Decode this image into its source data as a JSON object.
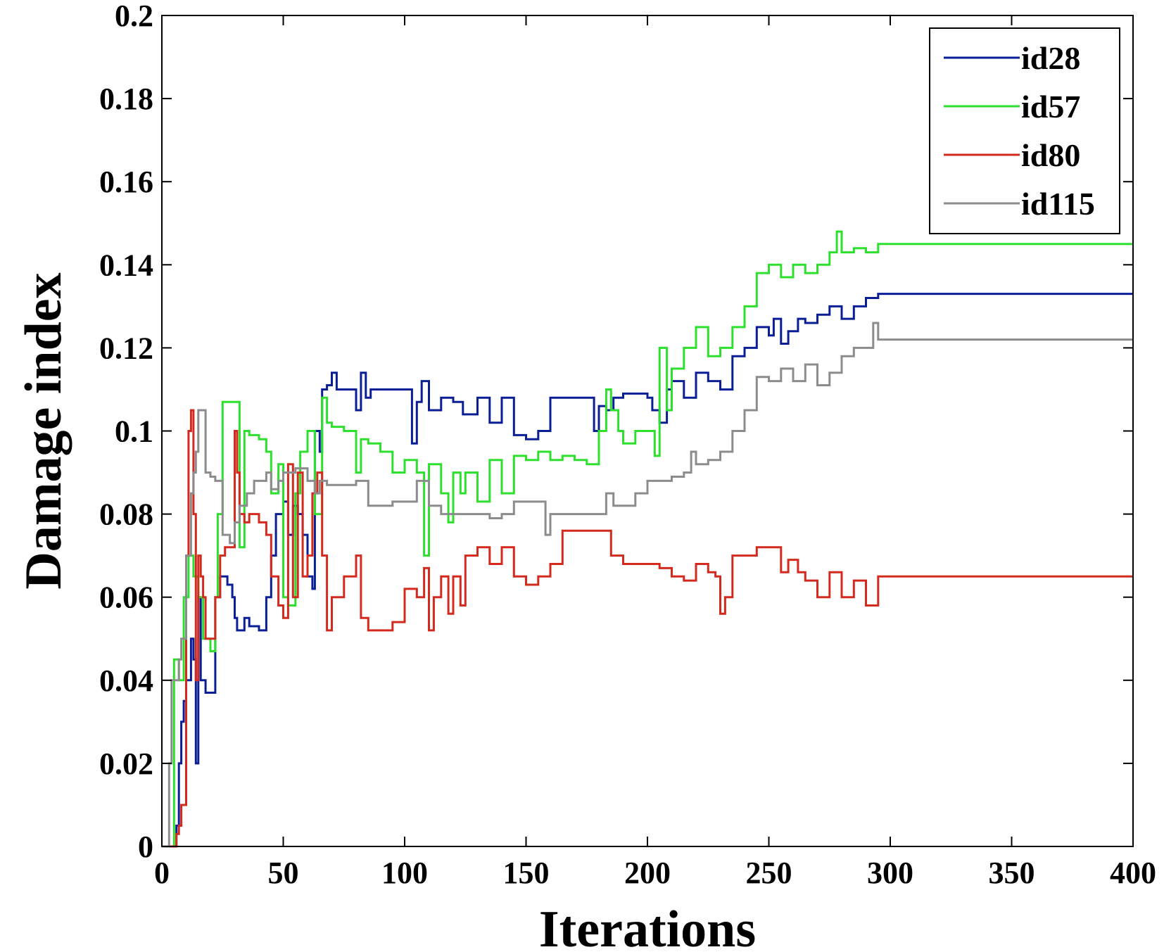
{
  "chart_data": {
    "type": "line",
    "title": "",
    "xlabel": "Iterations",
    "ylabel": "Damage index",
    "xlim": [
      0,
      400
    ],
    "ylim": [
      0,
      0.2
    ],
    "xticks": [
      0,
      50,
      100,
      150,
      200,
      250,
      300,
      350,
      400
    ],
    "yticks": [
      0,
      0.02,
      0.04,
      0.06,
      0.08,
      0.1,
      0.12,
      0.14,
      0.16,
      0.18,
      0.2
    ],
    "xtick_labels": [
      "0",
      "50",
      "100",
      "150",
      "200",
      "250",
      "300",
      "350",
      "400"
    ],
    "ytick_labels": [
      "0",
      "0.02",
      "0.04",
      "0.06",
      "0.08",
      "0.1",
      "0.12",
      "0.14",
      "0.16",
      "0.18",
      "0.2"
    ],
    "grid": false,
    "legend_position": "top-right",
    "series": [
      {
        "name": "id28",
        "color": "#0a1e96",
        "x": [
          0,
          3,
          5,
          6,
          7,
          8,
          9,
          10,
          12,
          13,
          14,
          15,
          16,
          18,
          20,
          22,
          24,
          27,
          29,
          30,
          31,
          32,
          34,
          36,
          40,
          43,
          45,
          47,
          50,
          52,
          54,
          56,
          58,
          60,
          62,
          63,
          65,
          66,
          68,
          70,
          72,
          75,
          80,
          82,
          84,
          86,
          90,
          100,
          103,
          105,
          107,
          110,
          115,
          120,
          124,
          130,
          135,
          140,
          145,
          150,
          155,
          160,
          170,
          178,
          180,
          183,
          186,
          190,
          200,
          202,
          205,
          208,
          210,
          215,
          220,
          225,
          230,
          235,
          240,
          245,
          250,
          252,
          255,
          258,
          262,
          265,
          270,
          275,
          280,
          285,
          290,
          295,
          300,
          320,
          350,
          400
        ],
        "values": [
          0,
          0,
          0,
          0.005,
          0.02,
          0.03,
          0.035,
          0.04,
          0.05,
          0.045,
          0.02,
          0.06,
          0.04,
          0.037,
          0.037,
          0.06,
          0.065,
          0.063,
          0.06,
          0.055,
          0.052,
          0.052,
          0.055,
          0.053,
          0.052,
          0.06,
          0.07,
          0.08,
          0.083,
          0.075,
          0.082,
          0.08,
          0.075,
          0.065,
          0.062,
          0.1,
          0.095,
          0.11,
          0.111,
          0.114,
          0.11,
          0.11,
          0.105,
          0.114,
          0.108,
          0.11,
          0.11,
          0.11,
          0.097,
          0.107,
          0.112,
          0.105,
          0.108,
          0.107,
          0.104,
          0.108,
          0.102,
          0.108,
          0.099,
          0.098,
          0.1,
          0.108,
          0.108,
          0.1,
          0.106,
          0.105,
          0.108,
          0.109,
          0.108,
          0.105,
          0.102,
          0.11,
          0.112,
          0.108,
          0.114,
          0.112,
          0.11,
          0.118,
          0.12,
          0.125,
          0.123,
          0.127,
          0.121,
          0.124,
          0.127,
          0.126,
          0.128,
          0.13,
          0.127,
          0.13,
          0.132,
          0.133,
          0.133,
          0.133,
          0.133,
          0.133
        ]
      },
      {
        "name": "id57",
        "color": "#2ee02e",
        "x": [
          0,
          3,
          5,
          7,
          9,
          11,
          13,
          15,
          17,
          20,
          22,
          23,
          25,
          27,
          30,
          32,
          34,
          36,
          40,
          43,
          45,
          48,
          50,
          52,
          55,
          57,
          60,
          63,
          66,
          68,
          70,
          75,
          80,
          82,
          85,
          90,
          95,
          100,
          105,
          108,
          110,
          115,
          118,
          120,
          123,
          125,
          130,
          135,
          140,
          145,
          150,
          155,
          160,
          165,
          170,
          175,
          180,
          183,
          185,
          188,
          190,
          195,
          200,
          203,
          205,
          208,
          210,
          215,
          220,
          225,
          230,
          235,
          240,
          245,
          250,
          255,
          260,
          265,
          270,
          275,
          278,
          280,
          285,
          290,
          295,
          300,
          320,
          350,
          400
        ],
        "values": [
          0,
          0,
          0.045,
          0.04,
          0.06,
          0.07,
          0.065,
          0.06,
          0.05,
          0.047,
          0.06,
          0.08,
          0.107,
          0.107,
          0.107,
          0.072,
          0.1,
          0.099,
          0.098,
          0.095,
          0.085,
          0.092,
          0.06,
          0.058,
          0.085,
          0.095,
          0.1,
          0.08,
          0.108,
          0.102,
          0.101,
          0.1,
          0.09,
          0.098,
          0.097,
          0.095,
          0.09,
          0.093,
          0.09,
          0.07,
          0.092,
          0.085,
          0.078,
          0.09,
          0.085,
          0.09,
          0.083,
          0.093,
          0.085,
          0.094,
          0.093,
          0.095,
          0.093,
          0.094,
          0.093,
          0.092,
          0.1,
          0.11,
          0.105,
          0.1,
          0.097,
          0.1,
          0.1,
          0.094,
          0.12,
          0.105,
          0.115,
          0.12,
          0.125,
          0.118,
          0.12,
          0.125,
          0.13,
          0.138,
          0.14,
          0.137,
          0.14,
          0.138,
          0.14,
          0.143,
          0.148,
          0.143,
          0.144,
          0.143,
          0.145,
          0.145,
          0.145,
          0.145,
          0.145
        ]
      },
      {
        "name": "id80",
        "color": "#d42a1e",
        "x": [
          0,
          3,
          5,
          6,
          7,
          8,
          10,
          11,
          12,
          13,
          14,
          15,
          16,
          17,
          18,
          20,
          22,
          24,
          26,
          28,
          30,
          31,
          32,
          34,
          36,
          40,
          43,
          45,
          48,
          50,
          52,
          54,
          56,
          58,
          60,
          62,
          64,
          66,
          68,
          70,
          75,
          80,
          82,
          85,
          90,
          95,
          100,
          105,
          108,
          110,
          112,
          115,
          118,
          120,
          123,
          125,
          130,
          135,
          140,
          145,
          150,
          155,
          160,
          165,
          170,
          175,
          180,
          185,
          190,
          200,
          205,
          210,
          215,
          220,
          225,
          228,
          230,
          232,
          235,
          240,
          245,
          250,
          255,
          258,
          262,
          265,
          270,
          275,
          280,
          285,
          290,
          295,
          300,
          320,
          350,
          400
        ],
        "values": [
          0,
          0,
          0,
          0.003,
          0.005,
          0.01,
          0.07,
          0.1,
          0.105,
          0.08,
          0.04,
          0.07,
          0.065,
          0.06,
          0.05,
          0.05,
          0.06,
          0.07,
          0.072,
          0.072,
          0.1,
          0.09,
          0.08,
          0.078,
          0.08,
          0.078,
          0.075,
          0.065,
          0.058,
          0.055,
          0.092,
          0.06,
          0.09,
          0.065,
          0.07,
          0.085,
          0.09,
          0.07,
          0.052,
          0.06,
          0.065,
          0.07,
          0.055,
          0.052,
          0.052,
          0.054,
          0.062,
          0.06,
          0.067,
          0.052,
          0.06,
          0.065,
          0.056,
          0.065,
          0.058,
          0.07,
          0.072,
          0.068,
          0.072,
          0.065,
          0.063,
          0.065,
          0.068,
          0.076,
          0.076,
          0.076,
          0.076,
          0.07,
          0.068,
          0.068,
          0.067,
          0.065,
          0.064,
          0.068,
          0.066,
          0.065,
          0.056,
          0.06,
          0.07,
          0.07,
          0.072,
          0.072,
          0.066,
          0.069,
          0.066,
          0.064,
          0.06,
          0.066,
          0.06,
          0.064,
          0.058,
          0.065,
          0.065,
          0.065,
          0.065,
          0.065
        ]
      },
      {
        "name": "id115",
        "color": "#8c8c8c",
        "x": [
          0,
          3,
          4,
          5,
          7,
          8,
          10,
          12,
          13,
          14,
          15,
          16,
          18,
          20,
          22,
          25,
          28,
          30,
          32,
          35,
          38,
          40,
          43,
          45,
          48,
          50,
          55,
          60,
          63,
          65,
          68,
          70,
          75,
          80,
          85,
          90,
          95,
          100,
          105,
          110,
          115,
          120,
          125,
          130,
          135,
          140,
          145,
          150,
          155,
          158,
          160,
          165,
          170,
          175,
          180,
          183,
          186,
          190,
          195,
          200,
          205,
          210,
          215,
          218,
          220,
          225,
          230,
          235,
          240,
          245,
          250,
          255,
          260,
          265,
          270,
          275,
          280,
          285,
          290,
          293,
          295,
          300,
          320,
          350,
          400
        ],
        "values": [
          0,
          0.02,
          0.04,
          0.04,
          0.045,
          0.05,
          0.07,
          0.085,
          0.09,
          0.095,
          0.105,
          0.105,
          0.09,
          0.089,
          0.088,
          0.075,
          0.073,
          0.078,
          0.082,
          0.085,
          0.088,
          0.088,
          0.09,
          0.086,
          0.088,
          0.09,
          0.091,
          0.088,
          0.085,
          0.088,
          0.087,
          0.087,
          0.087,
          0.088,
          0.082,
          0.082,
          0.083,
          0.083,
          0.088,
          0.082,
          0.08,
          0.08,
          0.08,
          0.08,
          0.079,
          0.08,
          0.083,
          0.083,
          0.083,
          0.075,
          0.08,
          0.08,
          0.08,
          0.08,
          0.08,
          0.085,
          0.082,
          0.082,
          0.085,
          0.088,
          0.088,
          0.089,
          0.09,
          0.095,
          0.092,
          0.093,
          0.095,
          0.1,
          0.105,
          0.113,
          0.112,
          0.115,
          0.112,
          0.116,
          0.111,
          0.114,
          0.118,
          0.12,
          0.12,
          0.126,
          0.122,
          0.122,
          0.122,
          0.122,
          0.122
        ]
      }
    ]
  }
}
